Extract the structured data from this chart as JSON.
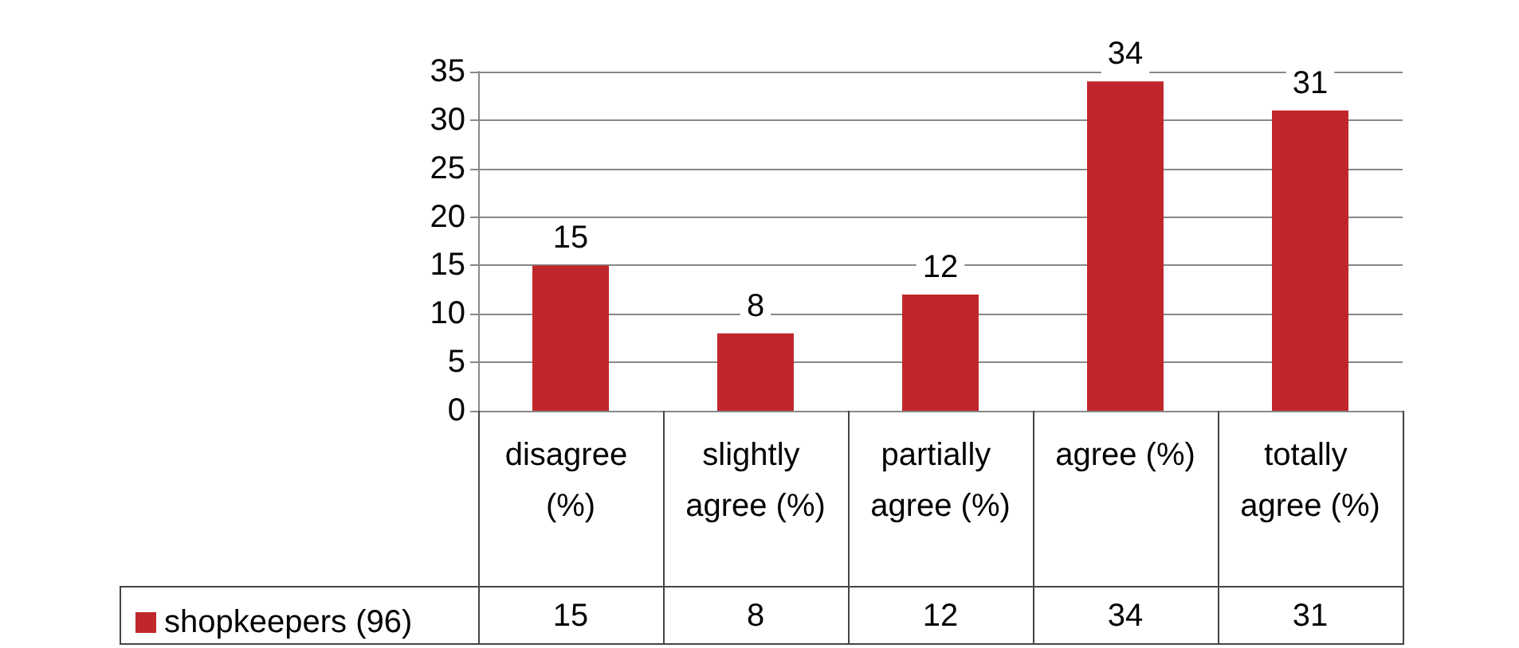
{
  "chart_data": {
    "type": "bar",
    "categories": [
      "disagree (%)",
      "slightly agree (%)",
      "partially agree (%)",
      "agree (%)",
      "totally agree (%)"
    ],
    "series": [
      {
        "name": "shopkeepers (96)",
        "color": "#c0272d",
        "values": [
          15,
          8,
          12,
          34,
          31
        ],
        "value_labels": [
          "15",
          "8",
          "12",
          "34",
          "31"
        ]
      }
    ],
    "ylim": [
      0,
      35
    ],
    "yticks": [
      0,
      5,
      10,
      15,
      20,
      25,
      30,
      35
    ],
    "grid": "y",
    "data_labels": true,
    "legend": "bottom"
  }
}
